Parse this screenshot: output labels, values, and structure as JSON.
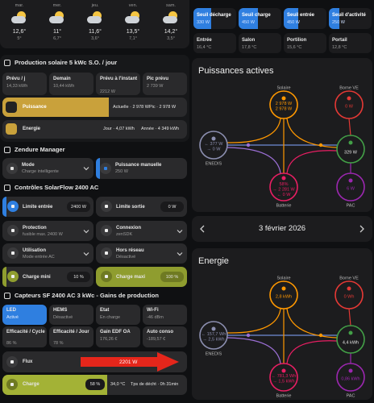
{
  "forecast": [
    {
      "day": "mar.",
      "high": "12,6°",
      "low": "5°"
    },
    {
      "day": "mer.",
      "high": "11°",
      "low": "6,7°"
    },
    {
      "day": "jeu.",
      "high": "11,6°",
      "low": "3,6°"
    },
    {
      "day": "ven.",
      "high": "13,5°",
      "low": "7,1°"
    },
    {
      "day": "sam.",
      "high": "14,2°",
      "low": "3,5°"
    }
  ],
  "solar": {
    "title": "Production solaire 5 kWc S.O. / jour",
    "tiles": [
      {
        "label": "Prévu / j",
        "value": "14,33 kWh"
      },
      {
        "label": "Demain",
        "value": "10,44 kWh"
      },
      {
        "label": "Prévu à l'instant",
        "value": "2212 W"
      },
      {
        "label": "Pic prévu",
        "value": "2 739 W"
      }
    ],
    "power": {
      "label": "Puissance",
      "current": "Actuelle · 2 978 W",
      "peak": "Pic · 2 978 W"
    },
    "energy": {
      "label": "Energie",
      "day": "Jour · 4,07 kWh",
      "year": "Année · 4 349 kWh"
    }
  },
  "zendure": {
    "title": "Zendure Manager",
    "tiles": [
      {
        "label": "Mode",
        "value": "Charge intelligente"
      },
      {
        "label": "Puissance manuelle",
        "value": "250 W"
      }
    ]
  },
  "controls": {
    "title": "Contrôles SolarFlow 2400 AC",
    "tiles": [
      {
        "label": "Limite entrée",
        "value": "2400 W"
      },
      {
        "label": "Limite sortie",
        "value": "0 W"
      },
      {
        "label": "Protection",
        "value": "fusible max. 2400 W"
      },
      {
        "label": "Connexion",
        "value": "zenSDK"
      },
      {
        "label": "Utilisation",
        "value": "Mode entrée AC"
      },
      {
        "label": "Hors réseau",
        "value": "Désactivé"
      },
      {
        "label": "Charge mini",
        "value": "10 %"
      },
      {
        "label": "Charge maxi",
        "value": "100 %"
      }
    ]
  },
  "sensors": {
    "title": "Capteurs SF 2400 AC 3 kWc - Gains de production",
    "tiles": [
      {
        "label": "LED",
        "value": "Activé"
      },
      {
        "label": "HEMS",
        "value": "Désactivé"
      },
      {
        "label": "Etat",
        "value": "En charge"
      },
      {
        "label": "Wi-Fi",
        "value": "-46 dBm"
      },
      {
        "label": "Efficacité / Cycle",
        "value": "86 %"
      },
      {
        "label": "Efficacité / Jour",
        "value": "78 %"
      },
      {
        "label": "Gain EDF OA",
        "value": "176,26 €"
      },
      {
        "label": "Auto conso",
        "value": "-189,57 €"
      }
    ],
    "flow": {
      "label": "Flux",
      "value": "2201 W"
    },
    "charge": {
      "label": "Charge",
      "percent": "58 %",
      "temp": "34,0 °C",
      "time": "Tps de décht · 0h 31min"
    }
  },
  "thresholds": [
    {
      "label": "Seuil décharge",
      "value": "330 W"
    },
    {
      "label": "Seuil charge",
      "value": "450 W"
    },
    {
      "label": "Seuil entrée",
      "value": "450 W"
    },
    {
      "label": "Seuil d'activité",
      "value": "250 W"
    }
  ],
  "temperatures": [
    {
      "label": "Entrée",
      "value": "16,4 °C"
    },
    {
      "label": "Salon",
      "value": "17,8 °C"
    },
    {
      "label": "Portilion",
      "value": "15,6 °C"
    },
    {
      "label": "Portail",
      "value": "12,8 °C"
    }
  ],
  "power_card": {
    "title": "Puissances actives",
    "nodes": {
      "solar": {
        "label": "Solaire",
        "lines": [
          "2 978 W",
          "2 978 W"
        ]
      },
      "ev": {
        "label": "Borne VE",
        "lines": [
          "0 W"
        ]
      },
      "grid": {
        "label": "ENEDIS",
        "lines": [
          "← 377 W",
          "→ 0 W"
        ]
      },
      "home": {
        "lines": [
          "329 W"
        ]
      },
      "battery": {
        "label": "Batterie",
        "lines": [
          "58%",
          "→ 2 281 W",
          "← 0 W"
        ]
      },
      "pac": {
        "label": "PAC",
        "lines": [
          "6 W"
        ]
      }
    }
  },
  "date": "3 février 2026",
  "energy_card": {
    "title": "Energie",
    "nodes": {
      "solar": {
        "label": "Solaire",
        "lines": [
          "2,8 kWh"
        ]
      },
      "ev": {
        "label": "Borne VE",
        "lines": [
          "0 Wh"
        ]
      },
      "grid": {
        "label": "ENEDIS",
        "lines": [
          "← 157,7 Wh",
          "→ 2,5 kWh"
        ]
      },
      "home": {
        "lines": [
          "4,4 kWh"
        ]
      },
      "battery": {
        "label": "Batterie",
        "lines": [
          "← 781,3 Wh",
          "→ 1,5 kWh"
        ]
      },
      "pac": {
        "label": "PAC",
        "lines": [
          "0,86 kWh"
        ]
      }
    }
  }
}
